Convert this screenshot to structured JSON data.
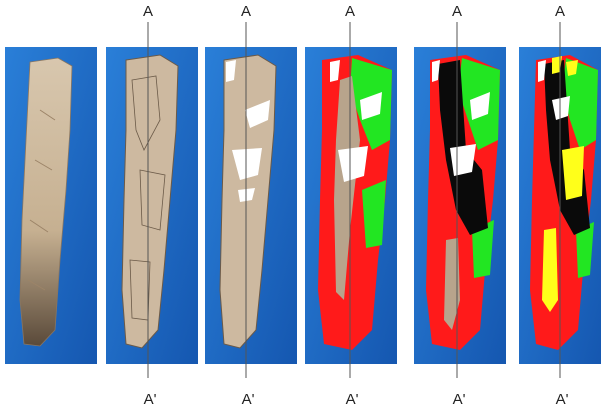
{
  "figure": {
    "panels": [
      {
        "id": "p1",
        "stage": "photo",
        "top_label": "",
        "bottom_label": ""
      },
      {
        "id": "p2",
        "stage": "outlined",
        "top_label": "A",
        "bottom_label": "A'"
      },
      {
        "id": "p3",
        "stage": "outlined-white",
        "top_label": "A",
        "bottom_label": "A'"
      },
      {
        "id": "p4",
        "stage": "colored-3",
        "top_label": "A",
        "bottom_label": "A'"
      },
      {
        "id": "p5",
        "stage": "colored-4",
        "top_label": "A",
        "bottom_label": "A'"
      },
      {
        "id": "p6",
        "stage": "colored-5",
        "top_label": "A",
        "bottom_label": "A'"
      }
    ],
    "colors": {
      "background_blue": "#1f6fc9",
      "bone": "#cdb9a0",
      "red": "#ff1a1a",
      "green": "#22e622",
      "black": "#0a0a0a",
      "white": "#ffffff",
      "yellow": "#ffff1a",
      "tan": "#b8a48c"
    }
  }
}
